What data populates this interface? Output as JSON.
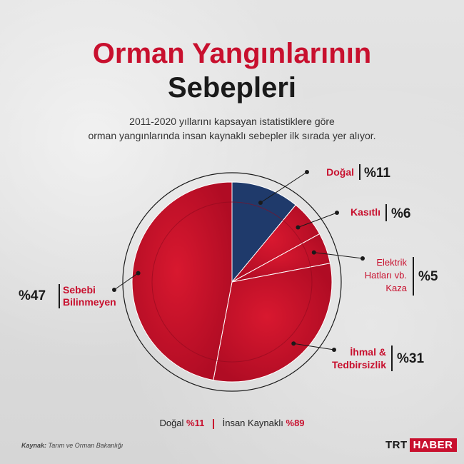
{
  "title": {
    "line1": "Orman Yangınlarının",
    "line2": "Sebepleri"
  },
  "subtitle": {
    "line1": "2011-2020 yıllarını kapsayan istatistiklere göre",
    "line2": "orman yangınlarında insan kaynaklı sebepler ilk sırada yer alıyor."
  },
  "chart_data": {
    "type": "pie",
    "title": "Orman Yangınlarının Sebepleri",
    "slices": [
      {
        "label": "Doğal",
        "value": 11,
        "value_text": "%11",
        "color": "#1f3a6b"
      },
      {
        "label": "Kasıtlı",
        "value": 6,
        "value_text": "%6",
        "color": "#c8102e"
      },
      {
        "label": "Elektrik Hatları vb. Kaza",
        "label_lines": [
          "Elektrik",
          "Hatları vb.",
          "Kaza"
        ],
        "value": 5,
        "value_text": "%5",
        "color": "#c8102e"
      },
      {
        "label": "İhmal & Tedbirsizlik",
        "label_lines": [
          "İhmal &",
          "Tedbirsizlik"
        ],
        "value": 31,
        "value_text": "%31",
        "color": "#c8102e"
      },
      {
        "label": "Sebebi Bilinmeyen",
        "label_lines": [
          "Sebebi",
          "Bilinmeyen"
        ],
        "value": 47,
        "value_text": "%47",
        "color": "#c8102e"
      }
    ],
    "summary": [
      {
        "label": "Doğal",
        "value_text": "%11"
      },
      {
        "label": "İnsan Kaynaklı",
        "value_text": "%89"
      }
    ]
  },
  "source": {
    "prefix": "Kaynak:",
    "text": "Tarım ve Orman Bakanlığı"
  },
  "logo": {
    "trt": "TRT",
    "haber": "HABER"
  },
  "colors": {
    "accent": "#c8102e",
    "navy": "#1f3a6b",
    "text": "#1a1a1a"
  }
}
